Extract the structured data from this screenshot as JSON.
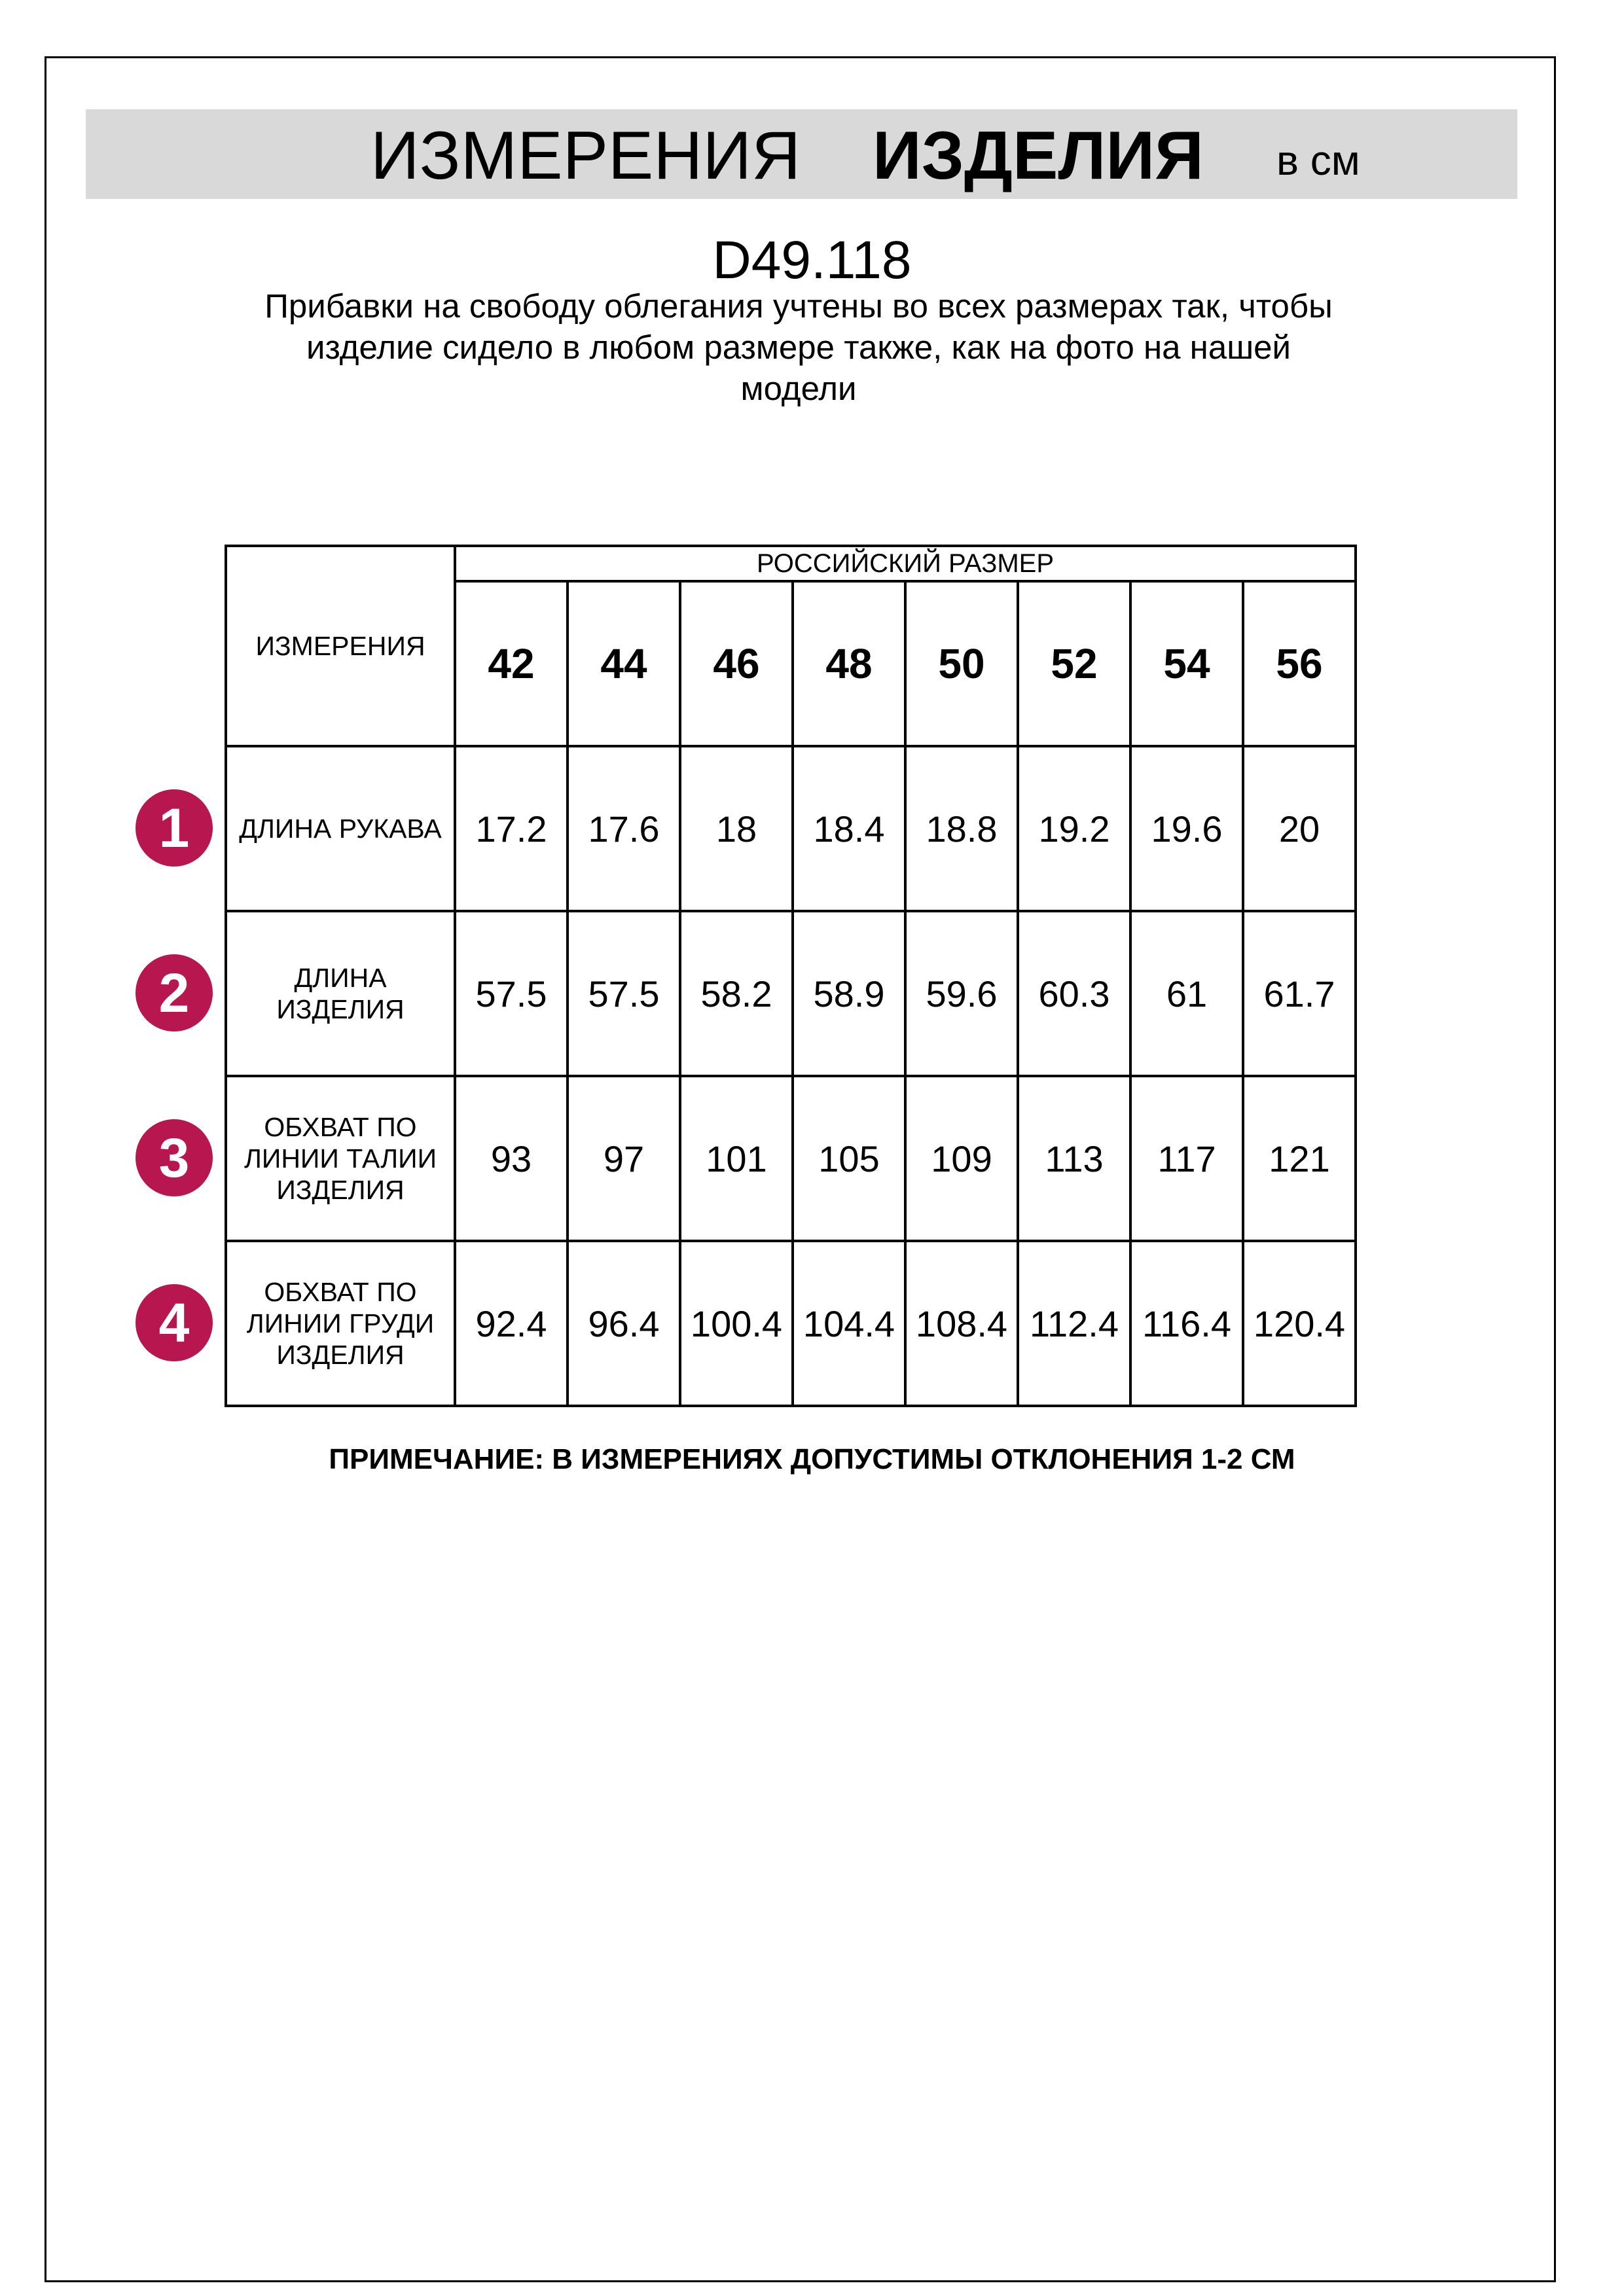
{
  "header": {
    "title_regular": "ИЗМЕРЕНИЯ",
    "title_bold": "ИЗДЕЛИЯ",
    "unit": "в см"
  },
  "product_code": "D49.118",
  "description": "Прибавки на свободу облегания учтены во всех размерах так, чтобы\nизделие сидело в любом размере также, как на фото на нашей\nмодели",
  "table": {
    "measurements_header": "ИЗМЕРЕНИЯ",
    "size_group_header": "РОССИЙСКИЙ РАЗМЕР",
    "sizes": [
      "42",
      "44",
      "46",
      "48",
      "50",
      "52",
      "54",
      "56"
    ],
    "rows": [
      {
        "num": "1",
        "label": "ДЛИНА РУКАВА",
        "values": [
          "17.2",
          "17.6",
          "18",
          "18.4",
          "18.8",
          "19.2",
          "19.6",
          "20"
        ]
      },
      {
        "num": "2",
        "label": "ДЛИНА\nИЗДЕЛИЯ",
        "values": [
          "57.5",
          "57.5",
          "58.2",
          "58.9",
          "59.6",
          "60.3",
          "61",
          "61.7"
        ]
      },
      {
        "num": "3",
        "label": "ОБХВАТ ПО\nЛИНИИ ТАЛИИ\nИЗДЕЛИЯ",
        "values": [
          "93",
          "97",
          "101",
          "105",
          "109",
          "113",
          "117",
          "121"
        ]
      },
      {
        "num": "4",
        "label": "ОБХВАТ ПО\nЛИНИИ ГРУДИ\nИЗДЕЛИЯ",
        "values": [
          "92.4",
          "96.4",
          "100.4",
          "104.4",
          "108.4",
          "112.4",
          "116.4",
          "120.4"
        ]
      }
    ]
  },
  "note": "ПРИМЕЧАНИЕ: В ИЗМЕРЕНИЯХ ДОПУСТИМЫ ОТКЛОНЕНИЯ 1-2 СМ",
  "colors": {
    "badge": "#b8164f",
    "header_band": "#d9d9d9"
  }
}
